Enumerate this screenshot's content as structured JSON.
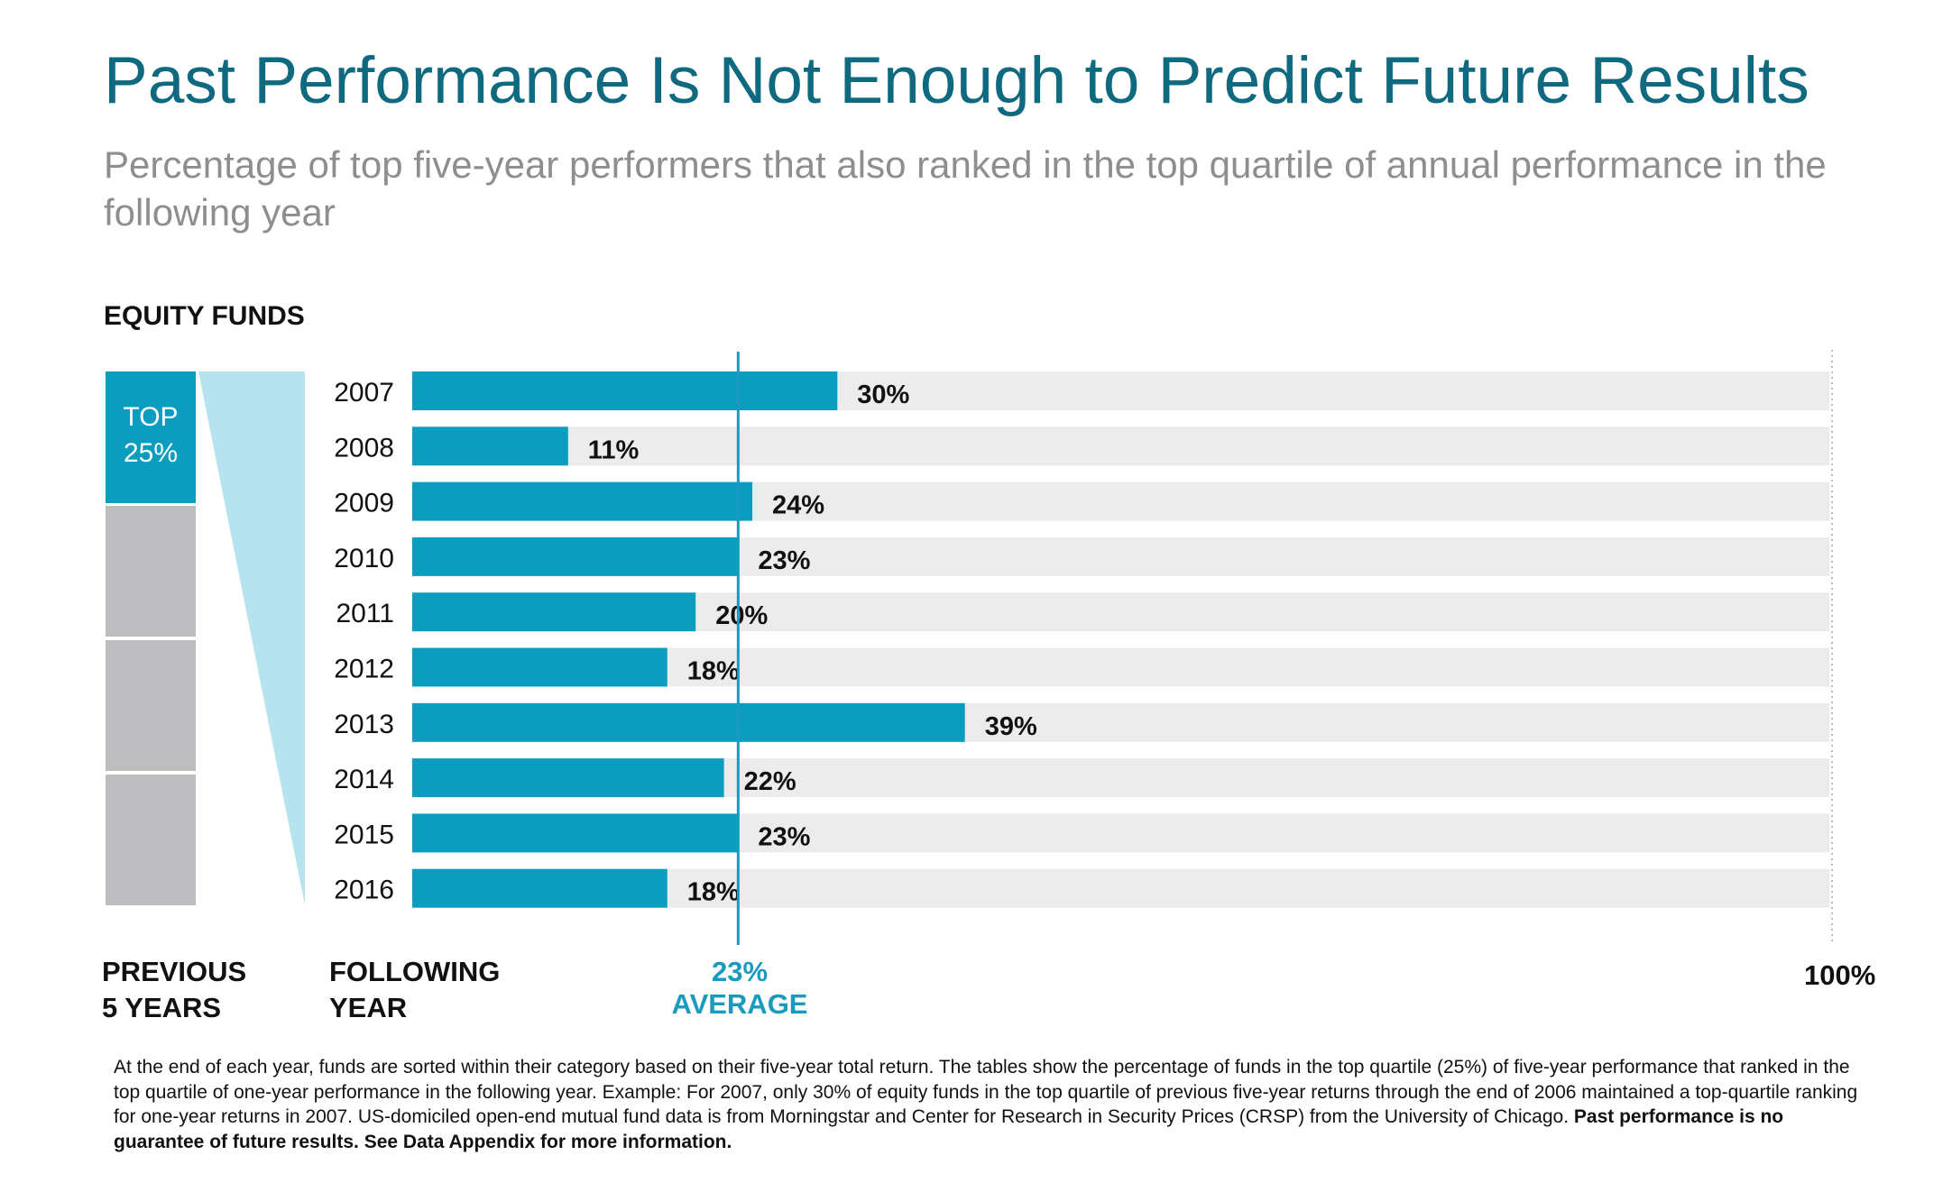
{
  "title": "Past Performance Is Not Enough to Predict Future Results",
  "subtitle": "Percentage of top five-year performers that also ranked in the top quartile of annual performance in the following year",
  "section_label": "EQUITY FUNDS",
  "left_block": {
    "top_label_line1": "TOP",
    "top_label_line2": "25%"
  },
  "bottom_labels": {
    "previous_line1": "PREVIOUS",
    "previous_line2": "5 YEARS",
    "following_line1": "FOLLOWING",
    "following_line2": "YEAR",
    "average_line1": "23%",
    "average_line2": "AVERAGE",
    "max_label": "100%"
  },
  "colors": {
    "bar": "#0a9dc0",
    "track": "#ececec",
    "average_line": "#1a9bbd",
    "funnel": "#b6e3ee",
    "grey_block": "#bdbdbf",
    "title": "#0f6a80"
  },
  "chart_data": {
    "type": "bar",
    "orientation": "horizontal",
    "categories": [
      "2007",
      "2008",
      "2009",
      "2010",
      "2011",
      "2012",
      "2013",
      "2014",
      "2015",
      "2016"
    ],
    "values": [
      30,
      11,
      24,
      23,
      20,
      18,
      39,
      22,
      23,
      18
    ],
    "value_labels": [
      "30%",
      "11%",
      "24%",
      "23%",
      "20%",
      "18%",
      "39%",
      "22%",
      "23%",
      "18%"
    ],
    "xlim": [
      0,
      100
    ],
    "average": 23
  },
  "footnote": {
    "text": "At the end of each year, funds are sorted within their category based on their five-year total return. The tables show the percentage of funds in the top quartile (25%) of five-year performance that ranked in the top quartile of one-year performance in the following year. Example: For 2007, only 30% of equity funds in the top quartile of previous five-year returns through the end of 2006 maintained a top-quartile ranking for one-year returns in 2007. US-domiciled open-end mutual fund data is from Morningstar and Center for Research in Security Prices (CRSP) from the University of Chicago. ",
    "bold": "Past performance is no guarantee of future results. See Data Appendix for more information."
  }
}
